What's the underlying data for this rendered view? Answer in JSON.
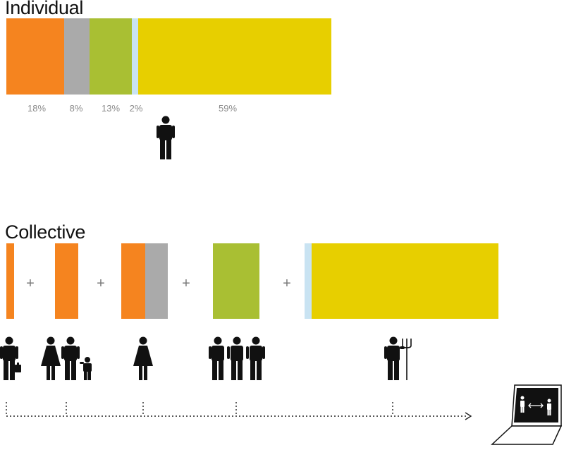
{
  "colors": {
    "orange": "#f5841f",
    "gray": "#aaaaaa",
    "green": "#a9bf33",
    "lightblue": "#c9e3f2",
    "yellow": "#e7cf00",
    "icon": "#111111"
  },
  "individual": {
    "title": "Individual",
    "segments": [
      {
        "name": "orange",
        "percent": "18%",
        "value": 18
      },
      {
        "name": "gray",
        "percent": "8%",
        "value": 8
      },
      {
        "name": "green",
        "percent": "13%",
        "value": 13
      },
      {
        "name": "lightblue",
        "percent": "2%",
        "value": 2
      },
      {
        "name": "yellow",
        "percent": "59%",
        "value": 59
      }
    ],
    "icon": "man-icon"
  },
  "collective": {
    "title": "Collective",
    "plus_sign": "+",
    "groups": [
      {
        "icons": [
          "businessman-icon"
        ],
        "segments": [
          "orange"
        ]
      },
      {
        "icons": [
          "family-icon"
        ],
        "segments": [
          "orange"
        ]
      },
      {
        "icons": [
          "woman-icon"
        ],
        "segments": [
          "orange",
          "gray"
        ]
      },
      {
        "icons": [
          "group-of-three-icon"
        ],
        "segments": [
          "green"
        ]
      },
      {
        "icons": [
          "farmer-with-pitchfork-icon"
        ],
        "segments": [
          "lightblue",
          "yellow"
        ]
      }
    ],
    "end_icon": "laptop-exchange-icon"
  }
}
